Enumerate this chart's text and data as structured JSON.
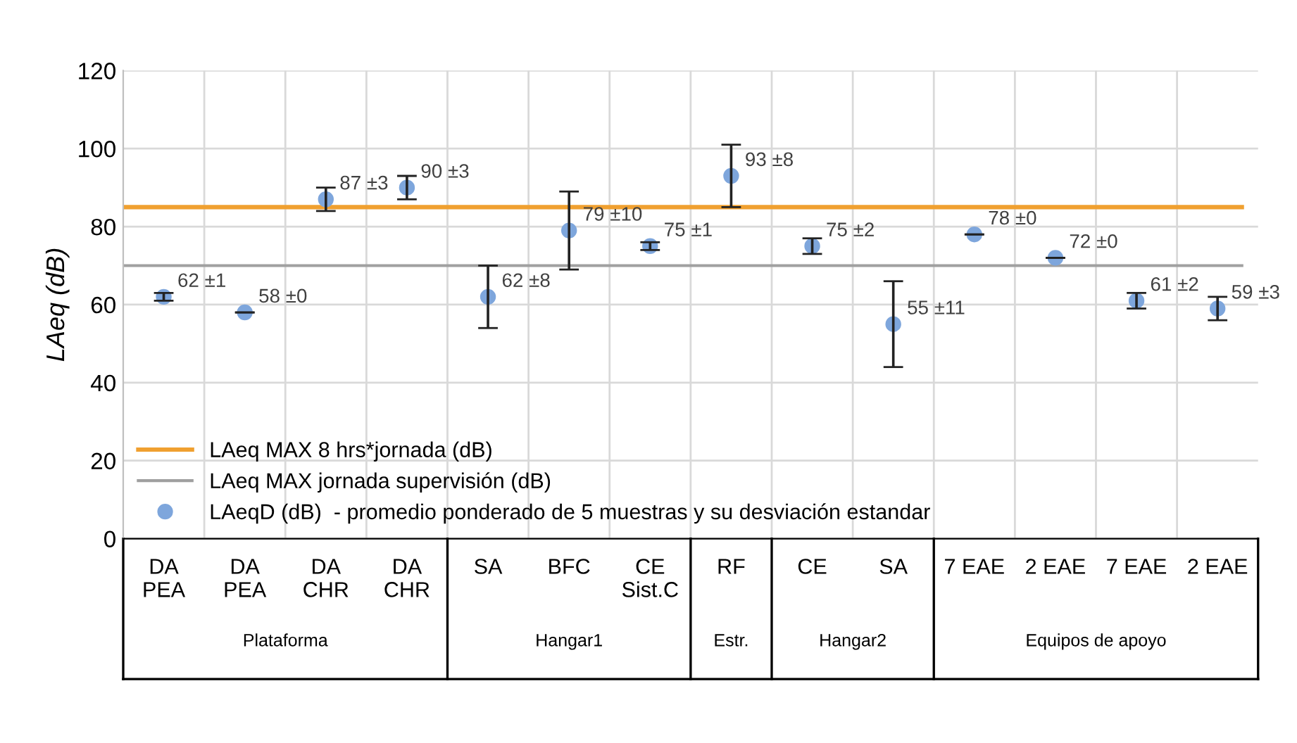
{
  "chart_data": {
    "type": "scatter",
    "ylabel": "LAeq (dB)",
    "categories": [
      "DA\nPEA",
      "DA\nPEA",
      "DA\nCHR",
      "DA\nCHR",
      "SA",
      "BFC",
      "CE\nSist.C",
      "RF",
      "CE",
      "SA",
      "7 EAE",
      "2 EAE",
      "7 EAE",
      "2 EAE"
    ],
    "series": [
      {
        "name": "LAeqD (dB)  - promedio ponderado de 5 muestras y su desviación estandar",
        "color": "#7ea6dc",
        "values": [
          62,
          58,
          87,
          90,
          62,
          79,
          75,
          93,
          75,
          55,
          78,
          72,
          61,
          59
        ],
        "errors": [
          1,
          0,
          3,
          3,
          8,
          10,
          1,
          8,
          2,
          11,
          0,
          0,
          2,
          3
        ],
        "value_labels": [
          "62 ±1",
          "58 ±0",
          "87 ±3",
          "90 ±3",
          "62 ±8",
          "79 ±10",
          "75 ±1",
          "93 ±8",
          "75 ±2",
          "55 ±11",
          "78 ±0",
          "72 ±0",
          "61 ±2",
          "59 ±3"
        ]
      }
    ],
    "ref_lines": [
      {
        "axis": "y",
        "value": 85,
        "label": "LAeq MAX 8 hrs*jornada (dB)",
        "color": "#f0a030"
      },
      {
        "axis": "y",
        "value": 70,
        "label": "LAeq MAX jornada supervisión (dB)",
        "color": "#a0a0a0"
      }
    ],
    "annotations": [
      "Plataforma",
      "Hangar1",
      "Estr.",
      "Hangar2",
      "Equipos de apoyo"
    ],
    "ylim": [
      0,
      120
    ],
    "yticks": [
      0,
      20,
      40,
      60,
      80,
      100,
      120
    ],
    "grid": true,
    "legend": "bottom left",
    "marker": "circle"
  }
}
